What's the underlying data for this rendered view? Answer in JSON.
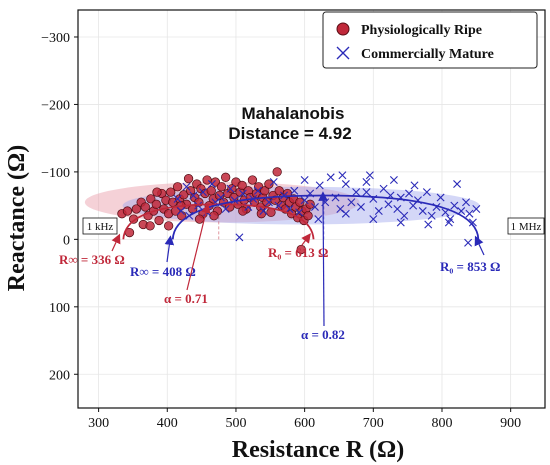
{
  "chart_data": {
    "type": "scatter",
    "xlabel": "Resistance R (Ω)",
    "ylabel": "Reactance (Ω)",
    "xlim": [
      270,
      950
    ],
    "ylim": [
      250,
      -340
    ],
    "y_inverted": true,
    "x_ticks": [
      300,
      400,
      500,
      600,
      700,
      800,
      900
    ],
    "y_ticks": [
      -300,
      -200,
      -100,
      0,
      100,
      200
    ],
    "x_tick_labels": [
      "300",
      "400",
      "500",
      "600",
      "700",
      "800",
      "900"
    ],
    "y_tick_labels": [
      "−300",
      "−200",
      "−100",
      "0",
      "100",
      "200"
    ],
    "grid": true,
    "legend_position": "top-right",
    "center_annotation": [
      "Mahalanobis",
      "Distance = 4.92"
    ],
    "frequency_labels": {
      "low": "1 kHz",
      "high": "1 MHz"
    },
    "colors": {
      "ripe": "#c0283a",
      "mature": "#2a2ab8",
      "ripe_ellipse": "#e89aa6",
      "mature_ellipse": "#9fa6ee"
    },
    "series": [
      {
        "name": "Physiologically Ripe",
        "marker": "circle",
        "color": "#c0283a",
        "ellipse": {
          "cx": 480,
          "cy": -55,
          "rx": 200,
          "ry": 30
        },
        "arc": {
          "r_inf": 336,
          "r0": 613,
          "peak_x": 475,
          "peak_y": -52
        },
        "points": [
          [
            334,
            -38
          ],
          [
            342,
            -42
          ],
          [
            345,
            -10
          ],
          [
            351,
            -30
          ],
          [
            355,
            -45
          ],
          [
            362,
            -55
          ],
          [
            365,
            -22
          ],
          [
            368,
            -48
          ],
          [
            372,
            -35
          ],
          [
            376,
            -60
          ],
          [
            380,
            -42
          ],
          [
            384,
            -52
          ],
          [
            388,
            -28
          ],
          [
            392,
            -68
          ],
          [
            395,
            -45
          ],
          [
            398,
            -58
          ],
          [
            402,
            -38
          ],
          [
            405,
            -70
          ],
          [
            408,
            -55
          ],
          [
            412,
            -42
          ],
          [
            415,
            -78
          ],
          [
            418,
            -60
          ],
          [
            421,
            -35
          ],
          [
            424,
            -66
          ],
          [
            428,
            -52
          ],
          [
            431,
            -90
          ],
          [
            434,
            -72
          ],
          [
            437,
            -45
          ],
          [
            440,
            -62
          ],
          [
            443,
            -82
          ],
          [
            446,
            -55
          ],
          [
            449,
            -75
          ],
          [
            452,
            -38
          ],
          [
            455,
            -68
          ],
          [
            458,
            -88
          ],
          [
            461,
            -50
          ],
          [
            464,
            -72
          ],
          [
            467,
            -60
          ],
          [
            470,
            -85
          ],
          [
            473,
            -42
          ],
          [
            476,
            -65
          ],
          [
            479,
            -78
          ],
          [
            482,
            -55
          ],
          [
            485,
            -92
          ],
          [
            488,
            -68
          ],
          [
            491,
            -48
          ],
          [
            494,
            -75
          ],
          [
            497,
            -62
          ],
          [
            500,
            -85
          ],
          [
            503,
            -52
          ],
          [
            506,
            -70
          ],
          [
            509,
            -80
          ],
          [
            512,
            -58
          ],
          [
            515,
            -45
          ],
          [
            518,
            -72
          ],
          [
            521,
            -62
          ],
          [
            524,
            -88
          ],
          [
            527,
            -55
          ],
          [
            530,
            -68
          ],
          [
            533,
            -78
          ],
          [
            536,
            -48
          ],
          [
            539,
            -62
          ],
          [
            542,
            -72
          ],
          [
            545,
            -55
          ],
          [
            548,
            -82
          ],
          [
            551,
            -40
          ],
          [
            554,
            -65
          ],
          [
            557,
            -58
          ],
          [
            560,
            -100
          ],
          [
            563,
            -72
          ],
          [
            566,
            -50
          ],
          [
            569,
            -62
          ],
          [
            572,
            -45
          ],
          [
            575,
            -68
          ],
          [
            578,
            -55
          ],
          [
            581,
            -38
          ],
          [
            584,
            -60
          ],
          [
            587,
            -48
          ],
          [
            590,
            -32
          ],
          [
            593,
            -55
          ],
          [
            596,
            -42
          ],
          [
            599,
            -28
          ],
          [
            602,
            -45
          ],
          [
            605,
            -35
          ],
          [
            608,
            -52
          ],
          [
            595,
            15
          ],
          [
            375,
            -20
          ],
          [
            420,
            -50
          ],
          [
            447,
            -30
          ],
          [
            510,
            -42
          ],
          [
            537,
            -38
          ],
          [
            468,
            -35
          ],
          [
            402,
            -20
          ],
          [
            385,
            -70
          ]
        ]
      },
      {
        "name": "Commercially Mature",
        "marker": "x",
        "color": "#2a2ab8",
        "ellipse": {
          "cx": 595,
          "cy": -50,
          "rx": 260,
          "ry": 28
        },
        "arc": {
          "r_inf": 408,
          "r0": 853,
          "peak_x": 628,
          "peak_y": -65
        },
        "points": [
          [
            415,
            -60
          ],
          [
            420,
            -42
          ],
          [
            428,
            -78
          ],
          [
            432,
            -35
          ],
          [
            438,
            -65
          ],
          [
            445,
            -50
          ],
          [
            452,
            -70
          ],
          [
            458,
            -40
          ],
          [
            465,
            -82
          ],
          [
            470,
            -55
          ],
          [
            478,
            -62
          ],
          [
            485,
            -45
          ],
          [
            492,
            -75
          ],
          [
            498,
            -58
          ],
          [
            505,
            -3
          ],
          [
            510,
            -68
          ],
          [
            518,
            -48
          ],
          [
            525,
            -60
          ],
          [
            532,
            -72
          ],
          [
            540,
            -42
          ],
          [
            548,
            -55
          ],
          [
            555,
            -85
          ],
          [
            562,
            -50
          ],
          [
            570,
            -65
          ],
          [
            578,
            -45
          ],
          [
            585,
            -72
          ],
          [
            592,
            -40
          ],
          [
            600,
            -58
          ],
          [
            608,
            -68
          ],
          [
            615,
            -48
          ],
          [
            622,
            -80
          ],
          [
            630,
            -55
          ],
          [
            638,
            -92
          ],
          [
            645,
            -62
          ],
          [
            652,
            -45
          ],
          [
            660,
            -82
          ],
          [
            668,
            -55
          ],
          [
            675,
            -70
          ],
          [
            682,
            -48
          ],
          [
            690,
            -85
          ],
          [
            695,
            -95
          ],
          [
            700,
            -60
          ],
          [
            708,
            -42
          ],
          [
            715,
            -75
          ],
          [
            722,
            -52
          ],
          [
            730,
            -88
          ],
          [
            735,
            -45
          ],
          [
            740,
            -62
          ],
          [
            745,
            -35
          ],
          [
            752,
            -68
          ],
          [
            758,
            -50
          ],
          [
            765,
            -58
          ],
          [
            772,
            -42
          ],
          [
            778,
            -70
          ],
          [
            785,
            -35
          ],
          [
            792,
            -48
          ],
          [
            798,
            -62
          ],
          [
            805,
            -40
          ],
          [
            812,
            -30
          ],
          [
            818,
            -50
          ],
          [
            822,
            -82
          ],
          [
            828,
            -42
          ],
          [
            835,
            -55
          ],
          [
            840,
            -38
          ],
          [
            845,
            -25
          ],
          [
            850,
            -45
          ],
          [
            838,
            5
          ],
          [
            660,
            -38
          ],
          [
            700,
            -30
          ],
          [
            740,
            -25
          ],
          [
            780,
            -22
          ],
          [
            810,
            -25
          ],
          [
            620,
            -30
          ],
          [
            760,
            -80
          ],
          [
            725,
            -65
          ],
          [
            690,
            -70
          ],
          [
            655,
            -95
          ],
          [
            600,
            -88
          ]
        ]
      }
    ],
    "annotations": [
      {
        "text": "R∞ = 336 Ω",
        "color": "#c0283a"
      },
      {
        "text": "R∞ = 408 Ω",
        "color": "#2a2ab8"
      },
      {
        "text": "α = 0.71",
        "color": "#c0283a"
      },
      {
        "text": "R₀ = 613 Ω",
        "color": "#c0283a"
      },
      {
        "text": "α = 0.82",
        "color": "#2a2ab8"
      },
      {
        "text": "R₀ = 853 Ω",
        "color": "#2a2ab8"
      }
    ]
  }
}
